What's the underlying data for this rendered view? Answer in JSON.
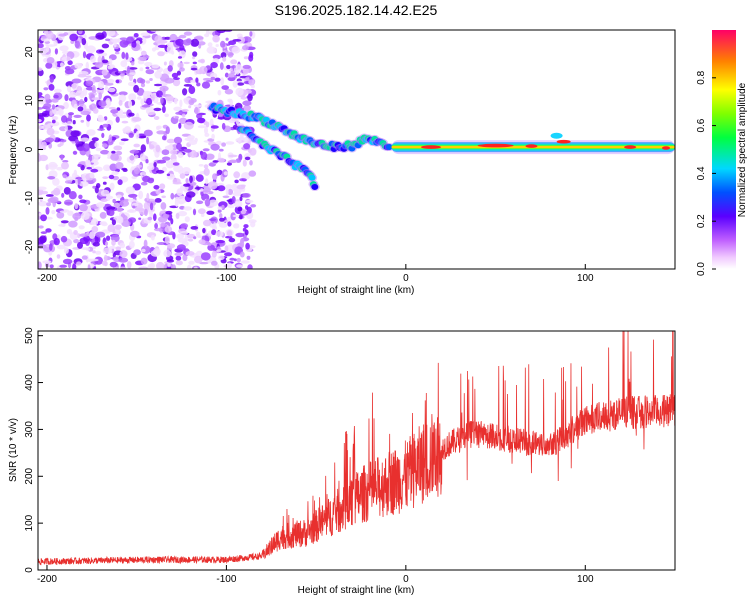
{
  "chart_data": [
    {
      "type": "heatmap",
      "title": "S196.2025.182.14.42.E25",
      "xlabel": "Height of straight line (km)",
      "ylabel": "Frequency (Hz)",
      "xlim": [
        -205,
        150
      ],
      "ylim": [
        -24.5,
        24.5
      ],
      "xticks": [
        "-200",
        "-100",
        "0",
        "100"
      ],
      "yticks": [
        "20",
        "10",
        "0",
        "-10",
        "-20"
      ],
      "colorbar": {
        "label": "Normalized spectral amplitude",
        "range": [
          0,
          1
        ],
        "ticks": [
          "0.0",
          "0.2",
          "0.4",
          "0.6",
          "0.8"
        ]
      },
      "features": {
        "noise_region_x": [
          -205,
          -85
        ],
        "noise_freq_range": [
          -24.5,
          24.5
        ],
        "upper_branch": [
          [
            -108,
            8.5
          ],
          [
            -95,
            7.5
          ],
          [
            -82,
            6.5
          ],
          [
            -70,
            4.5
          ],
          [
            -60,
            2.5
          ],
          [
            -50,
            1.2
          ],
          [
            -40,
            0.5
          ],
          [
            -30,
            0.8
          ],
          [
            -22,
            2.2
          ],
          [
            -15,
            1.5
          ],
          [
            -8,
            0.5
          ]
        ],
        "lower_branch": [
          [
            -92,
            4.5
          ],
          [
            -82,
            1.5
          ],
          [
            -72,
            -0.8
          ],
          [
            -64,
            -2.5
          ],
          [
            -58,
            -4
          ],
          [
            -53,
            -5.5
          ],
          [
            -50,
            -8
          ]
        ],
        "steady_line_x": [
          -8,
          150
        ],
        "steady_line_freq": 0.5
      }
    },
    {
      "type": "line",
      "xlabel": "Height of straight line (km)",
      "ylabel": "SNR (10 * v/v)",
      "xlim": [
        -205,
        150
      ],
      "ylim": [
        0,
        510
      ],
      "xticks": [
        "-200",
        "-100",
        "0",
        "100"
      ],
      "yticks": [
        "0",
        "100",
        "200",
        "300",
        "400",
        "500"
      ],
      "line_color": "#e8302e",
      "baseline_segments": [
        {
          "x": -205,
          "snr": 18
        },
        {
          "x": -140,
          "snr": 22
        },
        {
          "x": -100,
          "snr": 22
        },
        {
          "x": -80,
          "snr": 30
        },
        {
          "x": -70,
          "snr": 70
        },
        {
          "x": -55,
          "snr": 80
        },
        {
          "x": -40,
          "snr": 120
        },
        {
          "x": -25,
          "snr": 160
        },
        {
          "x": -10,
          "snr": 185
        },
        {
          "x": 0,
          "snr": 200
        },
        {
          "x": 10,
          "snr": 230
        },
        {
          "x": 20,
          "snr": 260
        },
        {
          "x": 35,
          "snr": 290
        },
        {
          "x": 50,
          "snr": 285
        },
        {
          "x": 70,
          "snr": 270
        },
        {
          "x": 85,
          "snr": 275
        },
        {
          "x": 100,
          "snr": 320
        },
        {
          "x": 120,
          "snr": 335
        },
        {
          "x": 150,
          "snr": 340
        }
      ],
      "peak_snr_max": 510
    }
  ]
}
